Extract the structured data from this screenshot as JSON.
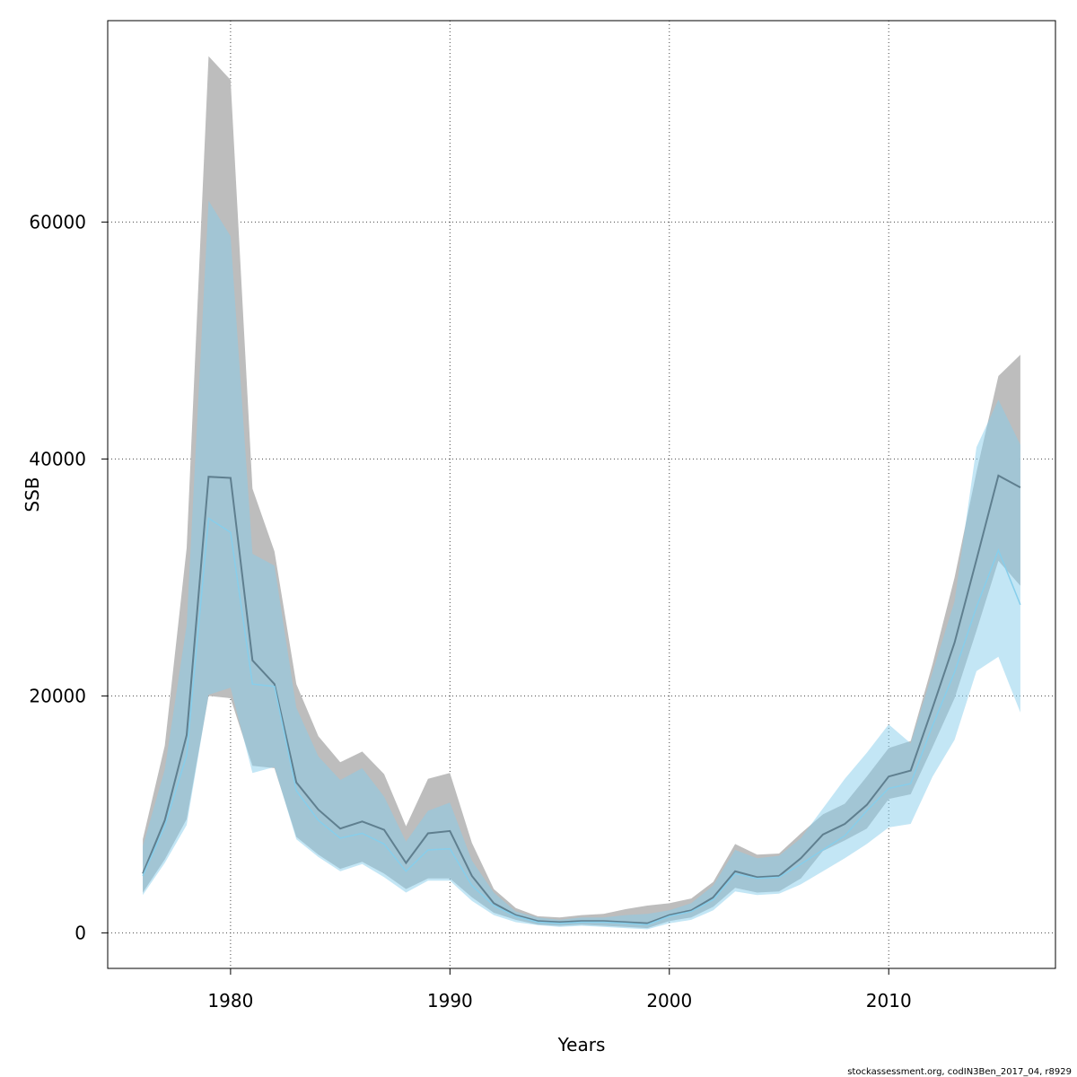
{
  "chart_data": {
    "type": "line",
    "xlabel": "Years",
    "ylabel": "SSB",
    "xlim": [
      1974.4,
      2017.6
    ],
    "ylim": [
      -3000,
      77000
    ],
    "x_ticks": [
      1980,
      1990,
      2000,
      2010
    ],
    "y_ticks": [
      0,
      20000,
      40000,
      60000
    ],
    "x_tick_labels": [
      "1980",
      "1990",
      "2000",
      "2010"
    ],
    "y_tick_labels": [
      "0",
      "20000",
      "40000",
      "60000"
    ],
    "grid": true,
    "grid_style": "dotted",
    "x": [
      1976,
      1977,
      1978,
      1979,
      1980,
      1981,
      1982,
      1983,
      1984,
      1985,
      1986,
      1987,
      1988,
      1989,
      1990,
      1991,
      1992,
      1993,
      1994,
      1995,
      1996,
      1997,
      1998,
      1999,
      2000,
      2001,
      2002,
      2003,
      2004,
      2005,
      2006,
      2007,
      2008,
      2009,
      2010,
      2011,
      2012,
      2013,
      2014,
      2015,
      2016
    ],
    "series": [
      {
        "color": "#bdbdbd",
        "line_color": "#5f7f8f",
        "values": [
          5000,
          9500,
          16700,
          38500,
          38400,
          23000,
          21000,
          12700,
          10400,
          8800,
          9400,
          8700,
          5900,
          8400,
          8600,
          4800,
          2500,
          1500,
          1000,
          900,
          1000,
          1000,
          900,
          800,
          1500,
          1900,
          3000,
          5200,
          4700,
          4800,
          6300,
          8300,
          9200,
          10800,
          13200,
          13700,
          19000,
          24500,
          31500,
          38600,
          37600
        ],
        "lower": [
          3400,
          6200,
          9600,
          20000,
          19800,
          14100,
          13900,
          8100,
          6600,
          5400,
          6000,
          5000,
          3700,
          4600,
          4600,
          3000,
          1700,
          1100,
          700,
          600,
          700,
          600,
          500,
          400,
          1000,
          1300,
          2200,
          3800,
          3400,
          3500,
          4600,
          6900,
          7800,
          8800,
          11300,
          11700,
          15700,
          19800,
          25500,
          31400,
          29300
        ],
        "upper": [
          7900,
          15800,
          32500,
          74000,
          72000,
          37500,
          32200,
          21000,
          16600,
          14400,
          15300,
          13400,
          9000,
          13000,
          13500,
          7600,
          3700,
          2100,
          1400,
          1300,
          1500,
          1600,
          2000,
          2300,
          2500,
          2900,
          4300,
          7500,
          6600,
          6700,
          8400,
          10000,
          10900,
          13200,
          15600,
          16200,
          22700,
          30000,
          38900,
          47000,
          48800
        ]
      },
      {
        "color": "#87ceeb",
        "line_color": "#87ceeb",
        "values": [
          4800,
          9000,
          15000,
          35000,
          33800,
          21000,
          20800,
          12000,
          9500,
          8000,
          8400,
          7500,
          5200,
          7000,
          7100,
          4000,
          2300,
          1400,
          900,
          800,
          900,
          900,
          800,
          700,
          1400,
          1800,
          2800,
          5000,
          4600,
          4700,
          5800,
          7000,
          8200,
          10300,
          12200,
          12600,
          17500,
          22000,
          27500,
          32300,
          27700
        ],
        "lower": [
          3200,
          5900,
          9100,
          20100,
          20700,
          13500,
          14000,
          7900,
          6400,
          5200,
          5800,
          4700,
          3400,
          4400,
          4400,
          2700,
          1500,
          900,
          650,
          500,
          600,
          500,
          400,
          300,
          800,
          1100,
          1900,
          3500,
          3200,
          3300,
          4100,
          5200,
          6300,
          7500,
          8900,
          9200,
          13200,
          16300,
          22100,
          23300,
          18600
        ],
        "upper": [
          7300,
          13800,
          26000,
          61800,
          58800,
          32000,
          31000,
          19000,
          14900,
          12900,
          13900,
          11500,
          7700,
          10300,
          11000,
          6100,
          3400,
          1800,
          1300,
          1100,
          1300,
          1300,
          1500,
          1600,
          1900,
          2500,
          4000,
          7000,
          6300,
          6500,
          8000,
          10500,
          13000,
          15200,
          17600,
          16000,
          22000,
          28000,
          41000,
          45000,
          41200
        ]
      }
    ]
  },
  "footer": {
    "credit": "stockassessment.org, codIN3Ben_2017_04, r8929"
  }
}
